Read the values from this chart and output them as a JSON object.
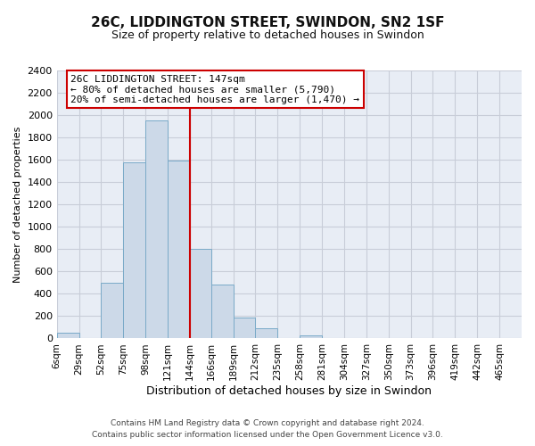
{
  "title": "26C, LIDDINGTON STREET, SWINDON, SN2 1SF",
  "subtitle": "Size of property relative to detached houses in Swindon",
  "xlabel": "Distribution of detached houses by size in Swindon",
  "ylabel": "Number of detached properties",
  "bin_labels": [
    "6sqm",
    "29sqm",
    "52sqm",
    "75sqm",
    "98sqm",
    "121sqm",
    "144sqm",
    "166sqm",
    "189sqm",
    "212sqm",
    "235sqm",
    "258sqm",
    "281sqm",
    "304sqm",
    "327sqm",
    "350sqm",
    "373sqm",
    "396sqm",
    "419sqm",
    "442sqm",
    "465sqm"
  ],
  "bin_edges": [
    6,
    29,
    52,
    75,
    98,
    121,
    144,
    166,
    189,
    212,
    235,
    258,
    281,
    304,
    327,
    350,
    373,
    396,
    419,
    442,
    465
  ],
  "bar_heights": [
    55,
    0,
    500,
    1580,
    1950,
    1590,
    800,
    480,
    185,
    90,
    0,
    30,
    0,
    0,
    0,
    0,
    0,
    0,
    0,
    0
  ],
  "bar_color": "#ccd9e8",
  "bar_edge_color": "#7aaac8",
  "vline_x": 144,
  "vline_color": "#cc0000",
  "ylim": [
    0,
    2400
  ],
  "yticks": [
    0,
    200,
    400,
    600,
    800,
    1000,
    1200,
    1400,
    1600,
    1800,
    2000,
    2200,
    2400
  ],
  "annotation_title": "26C LIDDINGTON STREET: 147sqm",
  "annotation_line1": "← 80% of detached houses are smaller (5,790)",
  "annotation_line2": "20% of semi-detached houses are larger (1,470) →",
  "footer1": "Contains HM Land Registry data © Crown copyright and database right 2024.",
  "footer2": "Contains public sector information licensed under the Open Government Licence v3.0.",
  "fig_background": "#ffffff",
  "plot_background": "#e8edf5",
  "grid_color": "#c8cdd8",
  "title_fontsize": 11,
  "subtitle_fontsize": 9,
  "ylabel_fontsize": 8,
  "xlabel_fontsize": 9,
  "tick_fontsize": 8,
  "ann_fontsize": 8,
  "footer_fontsize": 6.5
}
